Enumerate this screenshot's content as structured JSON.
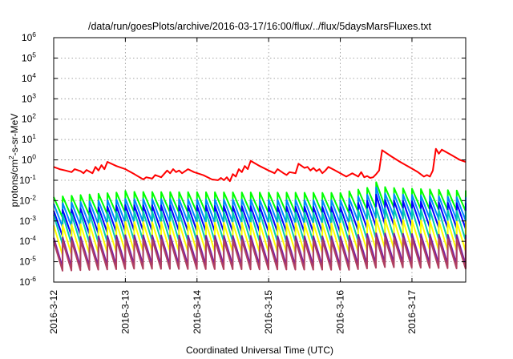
{
  "chart_data": {
    "type": "line",
    "title": "/data/run/goesPlots/archive/2016-03-17/16:00/flux/../flux/5daysMarsFluxes.txt",
    "xlabel": "Coordinated Universal Time (UTC)",
    "ylabel": {
      "base": "protons/cm",
      "superscript": "2",
      "rest": "-s-sr-MeV"
    },
    "xscale": "linear",
    "yscale": "log",
    "xlim": [
      "2016-03-12 00:00",
      "2016-03-17 18:00"
    ],
    "ylim": [
      1e-06,
      1000000.0
    ],
    "grid": true,
    "legend": "none",
    "x_ticks": [
      "2016-3-12",
      "2016-3-13",
      "2016-3-14",
      "2016-3-15",
      "2016-3-16",
      "2016-3-17"
    ],
    "y_ticks": [
      {
        "base": "10",
        "exp": "-6"
      },
      {
        "base": "10",
        "exp": "-5"
      },
      {
        "base": "10",
        "exp": "-4"
      },
      {
        "base": "10",
        "exp": "-3"
      },
      {
        "base": "10",
        "exp": "-2"
      },
      {
        "base": "10",
        "exp": "-1"
      },
      {
        "base": "10",
        "exp": "0"
      },
      {
        "base": "10",
        "exp": "1"
      },
      {
        "base": "10",
        "exp": "2"
      },
      {
        "base": "10",
        "exp": "3"
      },
      {
        "base": "10",
        "exp": "4"
      },
      {
        "base": "10",
        "exp": "5"
      },
      {
        "base": "10",
        "exp": "6"
      }
    ],
    "series": [
      {
        "color": "#ff0000",
        "style": "irregular",
        "points": [
          [
            "2016-03-12 00:00",
            0.45
          ],
          [
            "2016-03-12 02:00",
            0.35
          ],
          [
            "2016-03-12 04:00",
            0.3
          ],
          [
            "2016-03-12 06:00",
            0.25
          ],
          [
            "2016-03-12 07:00",
            0.35
          ],
          [
            "2016-03-12 09:00",
            0.28
          ],
          [
            "2016-03-12 10:00",
            0.22
          ],
          [
            "2016-03-12 11:00",
            0.32
          ],
          [
            "2016-03-12 13:00",
            0.22
          ],
          [
            "2016-03-12 14:00",
            0.45
          ],
          [
            "2016-03-12 15:00",
            0.3
          ],
          [
            "2016-03-12 16:00",
            0.55
          ],
          [
            "2016-03-12 17:00",
            0.35
          ],
          [
            "2016-03-12 18:00",
            0.8
          ],
          [
            "2016-03-12 21:00",
            0.5
          ],
          [
            "2016-03-13 00:00",
            0.35
          ],
          [
            "2016-03-13 03:00",
            0.2
          ],
          [
            "2016-03-13 06:00",
            0.11
          ],
          [
            "2016-03-13 07:00",
            0.14
          ],
          [
            "2016-03-13 09:00",
            0.12
          ],
          [
            "2016-03-13 10:00",
            0.18
          ],
          [
            "2016-03-13 12:00",
            0.14
          ],
          [
            "2016-03-13 14:00",
            0.3
          ],
          [
            "2016-03-13 15:00",
            0.22
          ],
          [
            "2016-03-13 16:00",
            0.35
          ],
          [
            "2016-03-13 17:00",
            0.25
          ],
          [
            "2016-03-13 18:00",
            0.3
          ],
          [
            "2016-03-13 19:00",
            0.22
          ],
          [
            "2016-03-13 21:00",
            0.35
          ],
          [
            "2016-03-13 23:00",
            0.25
          ],
          [
            "2016-03-14 02:00",
            0.18
          ],
          [
            "2016-03-14 05:00",
            0.11
          ],
          [
            "2016-03-14 07:00",
            0.1
          ],
          [
            "2016-03-14 08:00",
            0.13
          ],
          [
            "2016-03-14 09:00",
            0.1
          ],
          [
            "2016-03-14 10:00",
            0.14
          ],
          [
            "2016-03-14 11:00",
            0.09
          ],
          [
            "2016-03-14 12:00",
            0.2
          ],
          [
            "2016-03-14 13:00",
            0.15
          ],
          [
            "2016-03-14 14:00",
            0.35
          ],
          [
            "2016-03-14 15:00",
            0.25
          ],
          [
            "2016-03-14 16:00",
            0.5
          ],
          [
            "2016-03-14 17:00",
            0.35
          ],
          [
            "2016-03-14 18:00",
            0.9
          ],
          [
            "2016-03-14 21:00",
            0.5
          ],
          [
            "2016-03-15 00:00",
            0.3
          ],
          [
            "2016-03-15 02:00",
            0.22
          ],
          [
            "2016-03-15 03:00",
            0.35
          ],
          [
            "2016-03-15 05:00",
            0.22
          ],
          [
            "2016-03-15 06:00",
            0.18
          ],
          [
            "2016-03-15 07:00",
            0.25
          ],
          [
            "2016-03-15 09:00",
            0.22
          ],
          [
            "2016-03-15 10:00",
            0.65
          ],
          [
            "2016-03-15 12:00",
            0.4
          ],
          [
            "2016-03-15 13:00",
            0.45
          ],
          [
            "2016-03-15 14:00",
            0.3
          ],
          [
            "2016-03-15 15:00",
            0.4
          ],
          [
            "2016-03-15 16:00",
            0.28
          ],
          [
            "2016-03-15 17:00",
            0.35
          ],
          [
            "2016-03-15 18:00",
            0.22
          ],
          [
            "2016-03-15 19:00",
            0.3
          ],
          [
            "2016-03-15 20:00",
            0.45
          ],
          [
            "2016-03-15 22:00",
            0.32
          ],
          [
            "2016-03-16 00:00",
            0.22
          ],
          [
            "2016-03-16 02:00",
            0.15
          ],
          [
            "2016-03-16 04:00",
            0.22
          ],
          [
            "2016-03-16 06:00",
            0.15
          ],
          [
            "2016-03-16 07:00",
            0.25
          ],
          [
            "2016-03-16 08:00",
            0.14
          ],
          [
            "2016-03-16 09:00",
            0.16
          ],
          [
            "2016-03-16 10:00",
            0.13
          ],
          [
            "2016-03-16 11:00",
            0.14
          ],
          [
            "2016-03-16 12:00",
            0.2
          ],
          [
            "2016-03-16 13:00",
            0.3
          ],
          [
            "2016-03-16 14:00",
            3.0
          ],
          [
            "2016-03-16 17:00",
            1.5
          ],
          [
            "2016-03-16 20:00",
            0.8
          ],
          [
            "2016-03-16 23:00",
            0.45
          ],
          [
            "2016-03-17 02:00",
            0.25
          ],
          [
            "2016-03-17 04:00",
            0.15
          ],
          [
            "2016-03-17 05:00",
            0.18
          ],
          [
            "2016-03-17 06:00",
            0.15
          ],
          [
            "2016-03-17 07:00",
            0.3
          ],
          [
            "2016-03-17 08:00",
            3.5
          ],
          [
            "2016-03-17 09:00",
            2.0
          ],
          [
            "2016-03-17 10:00",
            3.2
          ],
          [
            "2016-03-17 13:00",
            1.8
          ],
          [
            "2016-03-17 16:00",
            1.0
          ],
          [
            "2016-03-17 18:00",
            0.8
          ]
        ]
      },
      {
        "color": "#00ff00",
        "style": "sawtooth",
        "period_hours": 3,
        "baseline": [
          [
            "2016-03-12 00:00",
            0.005
          ],
          [
            "2016-03-13 00:00",
            0.009
          ],
          [
            "2016-03-16 00:00",
            0.008
          ],
          [
            "2016-03-16 12:00",
            0.017
          ],
          [
            "2016-03-16 18:00",
            0.014
          ],
          [
            "2016-03-17 18:00",
            0.01
          ]
        ],
        "amplitude": 3,
        "resets": [
          [
            "2016-03-13 00:00",
            0.03
          ],
          [
            "2016-03-16 12:00",
            0.08
          ]
        ]
      },
      {
        "color": "#0088ff",
        "style": "sawtooth",
        "period_hours": 3,
        "baseline": [
          [
            "2016-03-12 00:00",
            0.002
          ],
          [
            "2016-03-13 00:00",
            0.0035
          ],
          [
            "2016-03-16 00:00",
            0.003
          ],
          [
            "2016-03-16 12:00",
            0.007
          ],
          [
            "2016-03-16 18:00",
            0.006
          ],
          [
            "2016-03-17 18:00",
            0.004
          ]
        ],
        "amplitude": 3.5,
        "resets": [
          [
            "2016-03-16 12:00",
            0.045
          ]
        ]
      },
      {
        "color": "#0000ff",
        "style": "sawtooth",
        "period_hours": 3,
        "baseline": [
          [
            "2016-03-12 00:00",
            0.0008
          ],
          [
            "2016-03-13 00:00",
            0.0015
          ],
          [
            "2016-03-16 00:00",
            0.0012
          ],
          [
            "2016-03-16 12:00",
            0.003
          ],
          [
            "2016-03-16 18:00",
            0.0025
          ],
          [
            "2016-03-17 18:00",
            0.0018
          ]
        ],
        "amplitude": 4,
        "resets": [
          [
            "2016-03-16 12:00",
            0.02
          ]
        ]
      },
      {
        "color": "#00ccb0",
        "style": "sawtooth",
        "period_hours": 3,
        "baseline": [
          [
            "2016-03-12 00:00",
            0.0004
          ],
          [
            "2016-03-13 00:00",
            0.0006
          ],
          [
            "2016-03-16 00:00",
            0.0005
          ],
          [
            "2016-03-16 12:00",
            0.0009
          ],
          [
            "2016-03-17 18:00",
            0.0006
          ]
        ],
        "amplitude": 5,
        "resets": []
      },
      {
        "color": "#ffff00",
        "style": "sawtooth",
        "period_hours": 3,
        "baseline": [
          [
            "2016-03-12 00:00",
            0.00012
          ],
          [
            "2016-03-13 00:00",
            0.00018
          ],
          [
            "2016-03-16 00:00",
            0.00015
          ],
          [
            "2016-03-16 12:00",
            0.00025
          ],
          [
            "2016-03-17 18:00",
            0.00018
          ]
        ],
        "amplitude": 5,
        "resets": []
      },
      {
        "color": "#7a1fa2",
        "style": "sawtooth",
        "period_hours": 3,
        "baseline": [
          [
            "2016-03-12 00:00",
            3e-05
          ],
          [
            "2016-03-13 00:00",
            4e-05
          ],
          [
            "2016-03-16 00:00",
            3.5e-05
          ],
          [
            "2016-03-16 12:00",
            5e-05
          ],
          [
            "2016-03-17 18:00",
            4e-05
          ]
        ],
        "amplitude": 5,
        "resets": []
      },
      {
        "color": "#b04060",
        "style": "sawtooth",
        "period_hours": 3,
        "baseline": [
          [
            "2016-03-12 00:00",
            2e-05
          ],
          [
            "2016-03-13 00:00",
            2.5e-05
          ],
          [
            "2016-03-16 00:00",
            2.2e-05
          ],
          [
            "2016-03-16 12:00",
            3e-05
          ],
          [
            "2016-03-17 18:00",
            2.5e-05
          ]
        ],
        "amplitude": 5,
        "resets": []
      }
    ]
  }
}
